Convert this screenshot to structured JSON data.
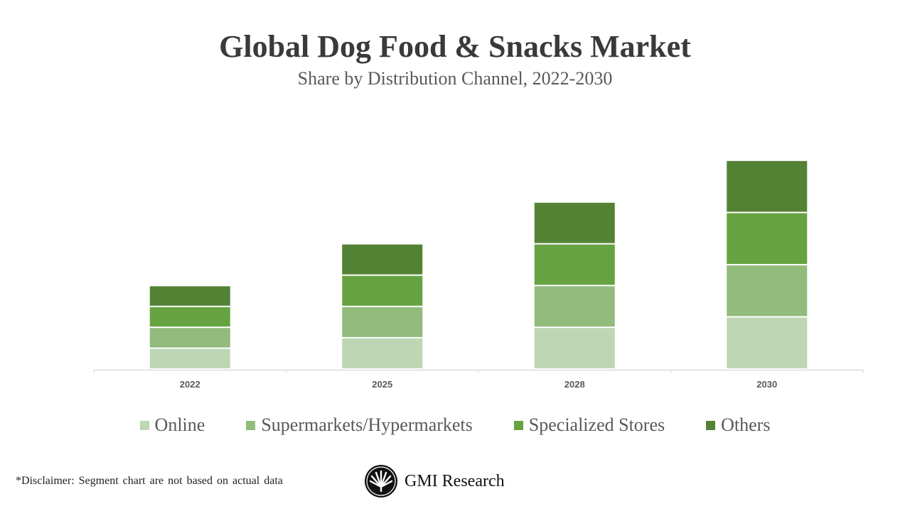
{
  "chart_data": {
    "type": "bar",
    "stacked": true,
    "title": "Global Dog Food & Snacks Market",
    "subtitle": "Share by Distribution Channel, 2022-2030",
    "xlabel": "",
    "ylabel": "",
    "categories": [
      "2022",
      "2025",
      "2028",
      "2030"
    ],
    "series": [
      {
        "name": "Online",
        "color": "#bdd6b3",
        "values": [
          1,
          1.5,
          2,
          2.5
        ]
      },
      {
        "name": "Supermarkets/Hypermarkets",
        "color": "#92bb7c",
        "values": [
          1,
          1.5,
          2,
          2.5
        ]
      },
      {
        "name": "Specialized Stores",
        "color": "#66a340",
        "values": [
          1,
          1.5,
          2,
          2.5
        ]
      },
      {
        "name": "Others",
        "color": "#548235",
        "values": [
          1,
          1.5,
          2,
          2.5
        ]
      }
    ],
    "value_note_units": "relative (no axis printed)",
    "ylim": [
      0,
      12
    ],
    "grid": false,
    "legend_position": "bottom"
  },
  "footer": {
    "disclaimer": "*Disclaimer:  Segment chart are not based on actual data",
    "brand": "GMI Research"
  }
}
